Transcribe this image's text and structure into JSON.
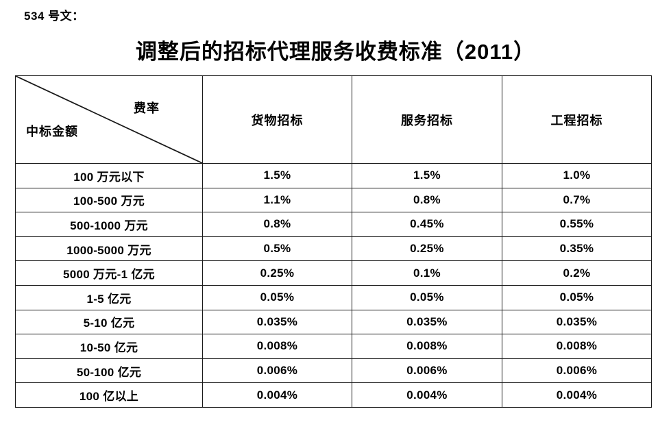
{
  "doc_label": "534 号文：",
  "title": "调整后的招标代理服务收费标准（2011）",
  "table": {
    "corner": {
      "top_right": "费率",
      "bottom_left": "中标金额"
    },
    "columns": [
      "货物招标",
      "服务招标",
      "工程招标"
    ],
    "rows": [
      {
        "label": "100 万元以下",
        "values": [
          "1.5%",
          "1.5%",
          "1.0%"
        ]
      },
      {
        "label": "100-500 万元",
        "values": [
          "1.1%",
          "0.8%",
          "0.7%"
        ]
      },
      {
        "label": "500-1000 万元",
        "values": [
          "0.8%",
          "0.45%",
          "0.55%"
        ]
      },
      {
        "label": "1000-5000 万元",
        "values": [
          "0.5%",
          "0.25%",
          "0.35%"
        ]
      },
      {
        "label": "5000 万元-1 亿元",
        "values": [
          "0.25%",
          "0.1%",
          "0.2%"
        ]
      },
      {
        "label": "1-5 亿元",
        "values": [
          "0.05%",
          "0.05%",
          "0.05%"
        ]
      },
      {
        "label": "5-10 亿元",
        "values": [
          "0.035%",
          "0.035%",
          "0.035%"
        ]
      },
      {
        "label": "10-50 亿元",
        "values": [
          "0.008%",
          "0.008%",
          "0.008%"
        ]
      },
      {
        "label": "50-100 亿元",
        "values": [
          "0.006%",
          "0.006%",
          "0.006%"
        ]
      },
      {
        "label": "100 亿以上",
        "values": [
          "0.004%",
          "0.004%",
          "0.004%"
        ]
      }
    ]
  },
  "colors": {
    "text": "#000000",
    "border": "#1a1a1a",
    "background": "#ffffff"
  }
}
